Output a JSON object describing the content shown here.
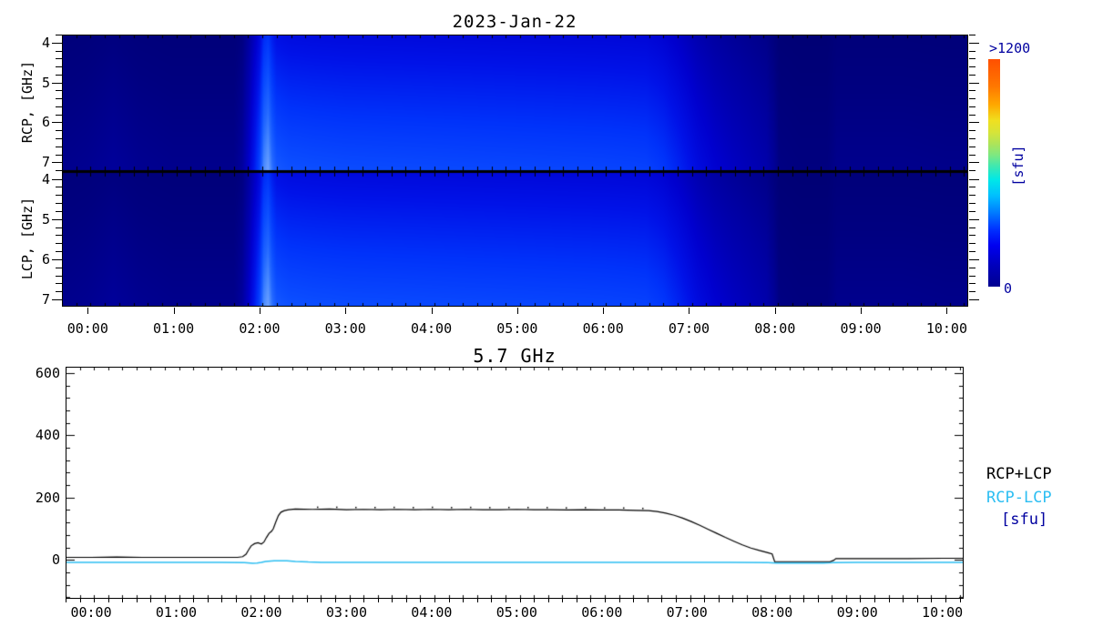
{
  "spectrogram": {
    "title": "2023-Jan-22",
    "rcp_label": "RCP, [GHz]",
    "lcp_label": "LCP, [GHz]",
    "freq_tick_labels": [
      "4",
      "5",
      "6",
      "7"
    ],
    "time_tick_labels": [
      "00:00",
      "01:00",
      "02:00",
      "03:00",
      "04:00",
      "05:00",
      "06:00",
      "07:00",
      "08:00",
      "09:00",
      "10:00"
    ],
    "colorbar": {
      "max_label": ">1200",
      "min_label": "0",
      "unit_label": "[sfu]",
      "label_color": "#0000A0"
    }
  },
  "lineplot": {
    "title": "5.7 GHz",
    "y_tick_labels": [
      "0",
      "200",
      "400",
      "600"
    ],
    "time_tick_labels": [
      "00:00",
      "01:00",
      "02:00",
      "03:00",
      "04:00",
      "05:00",
      "06:00",
      "07:00",
      "08:00",
      "09:00",
      "10:00"
    ],
    "legend": {
      "series1": "RCP+LCP",
      "series1_color": "#000000",
      "series2": "RCP-LCP",
      "series2_color": "#2CBEF2",
      "unit": "[sfu]",
      "unit_color": "#0000A0"
    }
  },
  "chart_data": [
    {
      "type": "heatmap",
      "title": "2023-Jan-22",
      "panels": [
        "RCP",
        "LCP"
      ],
      "y_units": "GHz",
      "y_ticks_ghz": [
        4,
        5,
        6,
        7
      ],
      "y_minor_step_ghz": 0.2,
      "y_displayed_range_ghz": [
        3.8,
        7.22
      ],
      "x_ticks_hours": [
        0,
        1,
        2,
        3,
        4,
        5,
        6,
        7,
        8,
        9,
        10
      ],
      "x_minor_step_hours": 0.1667,
      "x_range_hours": [
        -0.3,
        10.25
      ],
      "colorbar": {
        "min": 0,
        "max": 1200,
        "max_label": ">1200",
        "min_label": "0",
        "units": "sfu",
        "stops": [
          [
            0.0,
            "#000090"
          ],
          [
            0.1,
            "#0000C0"
          ],
          [
            0.18,
            "#0000F0"
          ],
          [
            0.25,
            "#0030FF"
          ],
          [
            0.33,
            "#0080FF"
          ],
          [
            0.4,
            "#00C0FF"
          ],
          [
            0.47,
            "#00E8E8"
          ],
          [
            0.53,
            "#40E8B0"
          ],
          [
            0.58,
            "#80E880"
          ],
          [
            0.63,
            "#B0E458"
          ],
          [
            0.68,
            "#D8E438"
          ],
          [
            0.73,
            "#F0E020"
          ],
          [
            0.8,
            "#FFA800"
          ],
          [
            0.88,
            "#FF7800"
          ],
          [
            1.0,
            "#FF5000"
          ]
        ]
      },
      "colormap_anchors": [
        [
          0.0,
          "#000068"
        ],
        [
          0.1,
          "#000080"
        ],
        [
          0.2,
          "#0000A2"
        ],
        [
          0.35,
          "#0000CE"
        ],
        [
          0.5,
          "#0012E8"
        ],
        [
          0.65,
          "#0032FA"
        ],
        [
          0.8,
          "#0B4DFF"
        ],
        [
          0.95,
          "#2368FF"
        ],
        [
          1.1,
          "#4D8DFF"
        ],
        [
          1.3,
          "#8EB5FF"
        ]
      ],
      "vertical_brightness_factor": [
        0.75,
        1.37
      ],
      "brightness_profile_time_norm": [
        [
          -0.3,
          0.1
        ],
        [
          0.0,
          0.11
        ],
        [
          0.3,
          0.13
        ],
        [
          0.6,
          0.11
        ],
        [
          1.0,
          0.1
        ],
        [
          1.4,
          0.1
        ],
        [
          1.7,
          0.1
        ],
        [
          1.8,
          0.14
        ],
        [
          1.88,
          0.26
        ],
        [
          1.95,
          0.42
        ],
        [
          2.0,
          0.55
        ],
        [
          2.05,
          0.8
        ],
        [
          2.1,
          0.88
        ],
        [
          2.15,
          0.72
        ],
        [
          2.2,
          0.63
        ],
        [
          2.35,
          0.6
        ],
        [
          2.6,
          0.59
        ],
        [
          3.0,
          0.58
        ],
        [
          3.5,
          0.575
        ],
        [
          4.0,
          0.57
        ],
        [
          4.5,
          0.565
        ],
        [
          5.0,
          0.56
        ],
        [
          5.5,
          0.555
        ],
        [
          6.0,
          0.55
        ],
        [
          6.3,
          0.545
        ],
        [
          6.5,
          0.54
        ],
        [
          6.7,
          0.5
        ],
        [
          6.9,
          0.42
        ],
        [
          7.1,
          0.33
        ],
        [
          7.3,
          0.27
        ],
        [
          7.5,
          0.23
        ],
        [
          7.7,
          0.2
        ],
        [
          7.9,
          0.17
        ],
        [
          8.0,
          0.12
        ],
        [
          8.05,
          0.08
        ],
        [
          8.3,
          0.07
        ],
        [
          8.6,
          0.07
        ],
        [
          8.72,
          0.1
        ],
        [
          9.0,
          0.1
        ],
        [
          9.5,
          0.1
        ],
        [
          10.0,
          0.095
        ],
        [
          10.25,
          0.095
        ]
      ]
    },
    {
      "type": "line",
      "title": "5.7 GHz",
      "units": "sfu",
      "x_range_hours": [
        -0.3,
        10.25
      ],
      "ylim": [
        -125,
        620
      ],
      "y_ticks": [
        0,
        200,
        400,
        600
      ],
      "y_minor_step": 40,
      "x_ticks_hours": [
        0,
        1,
        2,
        3,
        4,
        5,
        6,
        7,
        8,
        9,
        10
      ],
      "x_minor_step_hours": 0.1667,
      "legend_position": "right",
      "series": [
        {
          "name": "RCP+LCP",
          "color": "#000000",
          "points": [
            [
              -0.3,
              8
            ],
            [
              0.0,
              8
            ],
            [
              0.3,
              9
            ],
            [
              0.6,
              8
            ],
            [
              0.9,
              8
            ],
            [
              1.2,
              8
            ],
            [
              1.5,
              8
            ],
            [
              1.72,
              8
            ],
            [
              1.78,
              10
            ],
            [
              1.82,
              18
            ],
            [
              1.85,
              32
            ],
            [
              1.88,
              45
            ],
            [
              1.92,
              52
            ],
            [
              1.96,
              55
            ],
            [
              2.0,
              51
            ],
            [
              2.03,
              57
            ],
            [
              2.06,
              72
            ],
            [
              2.09,
              85
            ],
            [
              2.12,
              92
            ],
            [
              2.14,
              100
            ],
            [
              2.17,
              122
            ],
            [
              2.2,
              142
            ],
            [
              2.23,
              153
            ],
            [
              2.27,
              158
            ],
            [
              2.32,
              161
            ],
            [
              2.4,
              163
            ],
            [
              2.6,
              162
            ],
            [
              2.8,
              163
            ],
            [
              3.0,
              161
            ],
            [
              3.2,
              162
            ],
            [
              3.4,
              161
            ],
            [
              3.6,
              162
            ],
            [
              3.8,
              161
            ],
            [
              4.0,
              162
            ],
            [
              4.2,
              161
            ],
            [
              4.4,
              162
            ],
            [
              4.6,
              161
            ],
            [
              4.8,
              161
            ],
            [
              5.0,
              162
            ],
            [
              5.2,
              161
            ],
            [
              5.4,
              161
            ],
            [
              5.6,
              160
            ],
            [
              5.8,
              161
            ],
            [
              6.0,
              160
            ],
            [
              6.2,
              160
            ],
            [
              6.4,
              159
            ],
            [
              6.55,
              158
            ],
            [
              6.65,
              155
            ],
            [
              6.75,
              150
            ],
            [
              6.85,
              143
            ],
            [
              6.95,
              134
            ],
            [
              7.05,
              123
            ],
            [
              7.15,
              111
            ],
            [
              7.25,
              98
            ],
            [
              7.35,
              85
            ],
            [
              7.45,
              72
            ],
            [
              7.55,
              60
            ],
            [
              7.65,
              48
            ],
            [
              7.75,
              38
            ],
            [
              7.85,
              30
            ],
            [
              7.95,
              23
            ],
            [
              8.0,
              19
            ],
            [
              8.03,
              -6
            ],
            [
              8.1,
              -6
            ],
            [
              8.3,
              -6
            ],
            [
              8.5,
              -6
            ],
            [
              8.68,
              -6
            ],
            [
              8.72,
              -2
            ],
            [
              8.75,
              4
            ],
            [
              9.0,
              4
            ],
            [
              9.3,
              4
            ],
            [
              9.6,
              4
            ],
            [
              10.0,
              5
            ],
            [
              10.25,
              5
            ]
          ]
        },
        {
          "name": "RCP-LCP",
          "color": "#2CBEF2",
          "points": [
            [
              -0.3,
              -8
            ],
            [
              0.5,
              -8
            ],
            [
              1.0,
              -8
            ],
            [
              1.5,
              -8
            ],
            [
              1.8,
              -9
            ],
            [
              1.9,
              -11
            ],
            [
              1.95,
              -10
            ],
            [
              2.0,
              -8
            ],
            [
              2.05,
              -5
            ],
            [
              2.15,
              -3
            ],
            [
              2.3,
              -3
            ],
            [
              2.4,
              -5
            ],
            [
              2.55,
              -7
            ],
            [
              2.7,
              -8
            ],
            [
              3.5,
              -8
            ],
            [
              4.5,
              -8
            ],
            [
              5.5,
              -8
            ],
            [
              6.5,
              -8
            ],
            [
              7.0,
              -8
            ],
            [
              7.5,
              -8
            ],
            [
              7.95,
              -9
            ],
            [
              8.05,
              -10
            ],
            [
              8.3,
              -10
            ],
            [
              8.6,
              -10
            ],
            [
              8.72,
              -9
            ],
            [
              9.0,
              -8
            ],
            [
              9.5,
              -8
            ],
            [
              10.25,
              -8
            ]
          ]
        }
      ]
    }
  ]
}
